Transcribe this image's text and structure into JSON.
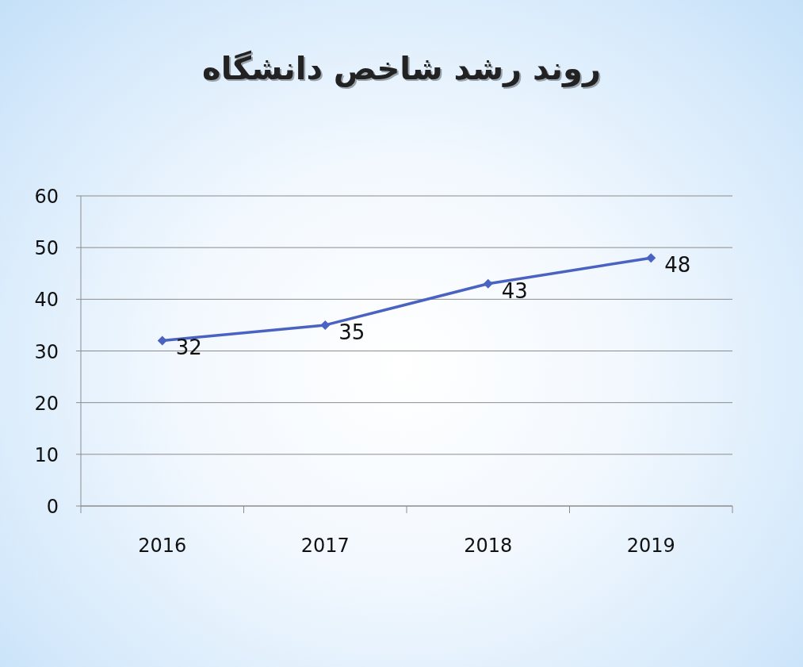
{
  "chart_data": {
    "type": "line",
    "title": "روند رشد شاخص دانشگاه",
    "categories": [
      "2016",
      "2017",
      "2018",
      "2019"
    ],
    "series": [
      {
        "color": "#4a63c2",
        "values": [
          32,
          35,
          43,
          48
        ]
      }
    ],
    "ylim": [
      0,
      60
    ],
    "yticks": [
      0,
      10,
      20,
      30,
      40,
      50,
      60
    ],
    "grid": "y",
    "marker": "diamond",
    "line_style": "solid",
    "data_labels": true
  }
}
